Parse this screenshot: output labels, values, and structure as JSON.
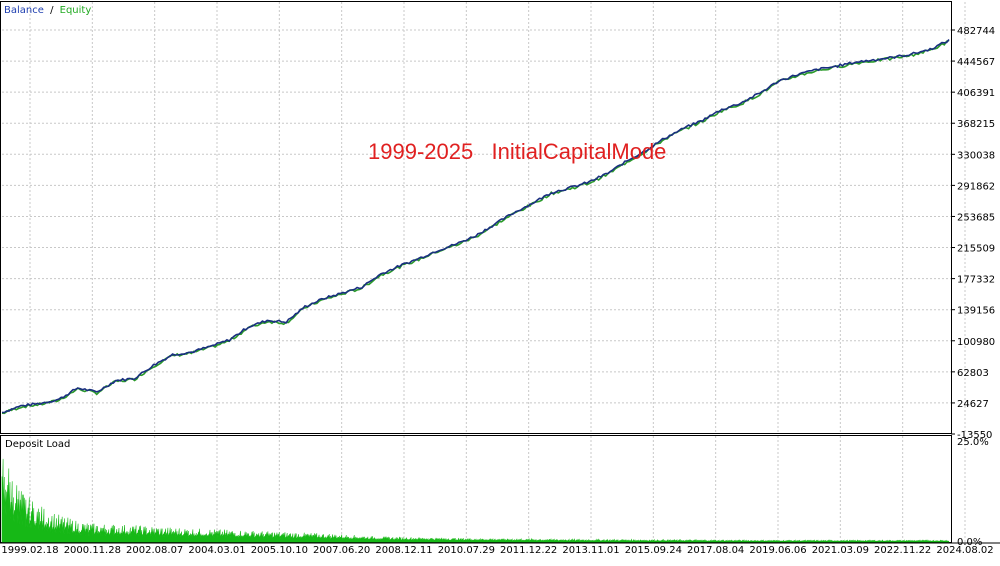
{
  "legend": {
    "balance_label": "Balance",
    "separator": "/",
    "equity_label": "Equity",
    "balance_color": "#1f3fb0",
    "equity_color": "#22aa22"
  },
  "annotation": {
    "text": "1999-2025   InitialCapitalMode",
    "color": "#e02020"
  },
  "colors": {
    "grid": "#c8c8c8",
    "axis": "#000000",
    "balance": "#1a2f80",
    "equity": "#2a9a2a",
    "deposit_fill": "#16b816"
  },
  "chart_data": [
    {
      "type": "line",
      "title": "",
      "legend_position": "top-left",
      "grid": true,
      "ylim": [
        -13550,
        520000
      ],
      "y_ticks": [
        482744,
        444567,
        406391,
        368215,
        330038,
        291862,
        253685,
        215509,
        177332,
        139156,
        100980,
        62803,
        24627,
        -13550
      ],
      "y_tick_labels": [
        "482744",
        "444567",
        "406391",
        "368215",
        "330038",
        "291862",
        "253685",
        "215509",
        "177332",
        "139156",
        "100980",
        "62803",
        "24627",
        "-13550"
      ],
      "x_tick_labels": [
        "1999.02.18",
        "2000.11.28",
        "2002.08.07",
        "2004.03.01",
        "2005.10.10",
        "2007.06.20",
        "2008.12.11",
        "2010.07.29",
        "2011.12.22",
        "2013.11.01",
        "2015.09.24",
        "2017.08.04",
        "2019.06.06",
        "2021.03.09",
        "2022.11.22",
        "2024.08.02"
      ],
      "series": [
        {
          "name": "Balance",
          "x": [
            0,
            2,
            4,
            6,
            8,
            10,
            12,
            14,
            16,
            18,
            20,
            22,
            24,
            26,
            28,
            30,
            32,
            34,
            36,
            38,
            40,
            42,
            44,
            46,
            48,
            50,
            52,
            54,
            56,
            58,
            60,
            62,
            64,
            66,
            68,
            70,
            72,
            74,
            76,
            78,
            80,
            82,
            84,
            86,
            88,
            90,
            92,
            94,
            96,
            98,
            100
          ],
          "values": [
            13000,
            21000,
            24000,
            29000,
            43000,
            38000,
            52000,
            55000,
            71000,
            84000,
            87000,
            94000,
            102000,
            118000,
            126000,
            124000,
            143000,
            153000,
            160000,
            167000,
            183000,
            193000,
            202000,
            212000,
            220000,
            230000,
            244000,
            258000,
            270000,
            283000,
            289000,
            296000,
            307000,
            322000,
            335000,
            350000,
            362000,
            372000,
            385000,
            393000,
            405000,
            420000,
            428000,
            434000,
            438000,
            443000,
            446000,
            449000,
            453000,
            459000,
            470000
          ]
        },
        {
          "name": "Equity",
          "x": [
            0,
            10,
            20,
            30,
            40,
            50,
            60,
            70,
            80,
            90,
            100
          ],
          "values": [
            13000,
            38000,
            87000,
            124000,
            183000,
            230000,
            289000,
            350000,
            405000,
            443000,
            470000
          ]
        }
      ]
    },
    {
      "type": "area",
      "title": "Deposit Load",
      "ylim": [
        0,
        25
      ],
      "y_tick_labels": [
        "25.0%",
        "0.0%"
      ],
      "series": [
        {
          "name": "Deposit Load",
          "x": [
            0,
            1,
            2,
            3,
            4,
            5,
            6,
            8,
            10,
            12,
            14,
            16,
            18,
            20,
            25,
            30,
            35,
            38,
            40,
            50,
            60,
            70,
            80,
            90,
            100
          ],
          "values": [
            21.0,
            15.5,
            11.5,
            9.5,
            8.0,
            7.0,
            6.0,
            4.6,
            4.0,
            3.9,
            3.7,
            3.4,
            3.2,
            3.0,
            2.6,
            2.2,
            1.8,
            1.4,
            1.2,
            0.8,
            0.6,
            0.5,
            0.4,
            0.4,
            0.4
          ]
        }
      ]
    }
  ]
}
